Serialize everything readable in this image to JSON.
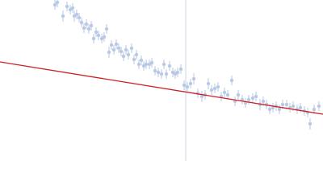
{
  "chart_data": {
    "type": "scatter",
    "xlim": [
      0,
      400
    ],
    "ylim": [
      0,
      200
    ],
    "vline": 230,
    "vline_color": "#ccd6ea",
    "series": [
      {
        "color": "#b9c9e5",
        "x": [
          68,
          71,
          78,
          83,
          87,
          90,
          92,
          95,
          98,
          101,
          104,
          107,
          110,
          113,
          116,
          119,
          122,
          126,
          129,
          132,
          135,
          138,
          141,
          144,
          147,
          150,
          153,
          156,
          159,
          163,
          166,
          169,
          172,
          175,
          178,
          181,
          185,
          188,
          192,
          196,
          200,
          203,
          206,
          210,
          214,
          217,
          220,
          224,
          228,
          232,
          236,
          240,
          245,
          250,
          254,
          258,
          262,
          266,
          270,
          274,
          278,
          282,
          287,
          291,
          295,
          300,
          304,
          308,
          313,
          317,
          322,
          326,
          330,
          334,
          338,
          342,
          346,
          350,
          355,
          359,
          363,
          368,
          372,
          377,
          381,
          384,
          389,
          395
        ],
        "values": [
          194,
          197,
          180,
          192,
          188,
          190,
          180,
          182,
          178,
          172,
          165,
          170,
          164,
          168,
          152,
          160,
          156,
          152,
          154,
          164,
          135,
          144,
          138,
          145,
          140,
          136,
          130,
          138,
          132,
          140,
          126,
          132,
          120,
          125,
          118,
          120,
          120,
          122,
          112,
          110,
          108,
          120,
          108,
          118,
          110,
          108,
          110,
          114,
          94,
          92,
          96,
          102,
          84,
          80,
          82,
          96,
          88,
          90,
          92,
          80,
          85,
          82,
          100,
          74,
          82,
          76,
          72,
          76,
          78,
          80,
          70,
          74,
          70,
          64,
          66,
          68,
          64,
          70,
          70,
          66,
          68,
          64,
          66,
          62,
          60,
          46,
          64,
          68
        ],
        "errors": [
          6,
          6,
          7,
          6,
          6,
          6,
          7,
          6,
          6,
          6,
          6,
          6,
          6,
          6,
          6,
          6,
          6,
          6,
          6,
          6,
          7,
          6,
          6,
          6,
          6,
          6,
          6,
          6,
          6,
          6,
          6,
          6,
          6,
          6,
          6,
          6,
          6,
          6,
          6,
          6,
          6,
          6,
          6,
          6,
          6,
          6,
          6,
          6,
          6,
          6,
          6,
          7,
          6,
          7,
          6,
          7,
          6,
          6,
          6,
          6,
          6,
          6,
          6,
          6,
          6,
          6,
          6,
          6,
          6,
          6,
          7,
          6,
          6,
          6,
          6,
          6,
          6,
          6,
          6,
          6,
          6,
          6,
          6,
          6,
          6,
          7,
          6,
          6
        ]
      },
      {
        "type": "line",
        "color": "#cc2020",
        "x": [
          0,
          400
        ],
        "values": [
          123,
          58
        ]
      }
    ]
  }
}
